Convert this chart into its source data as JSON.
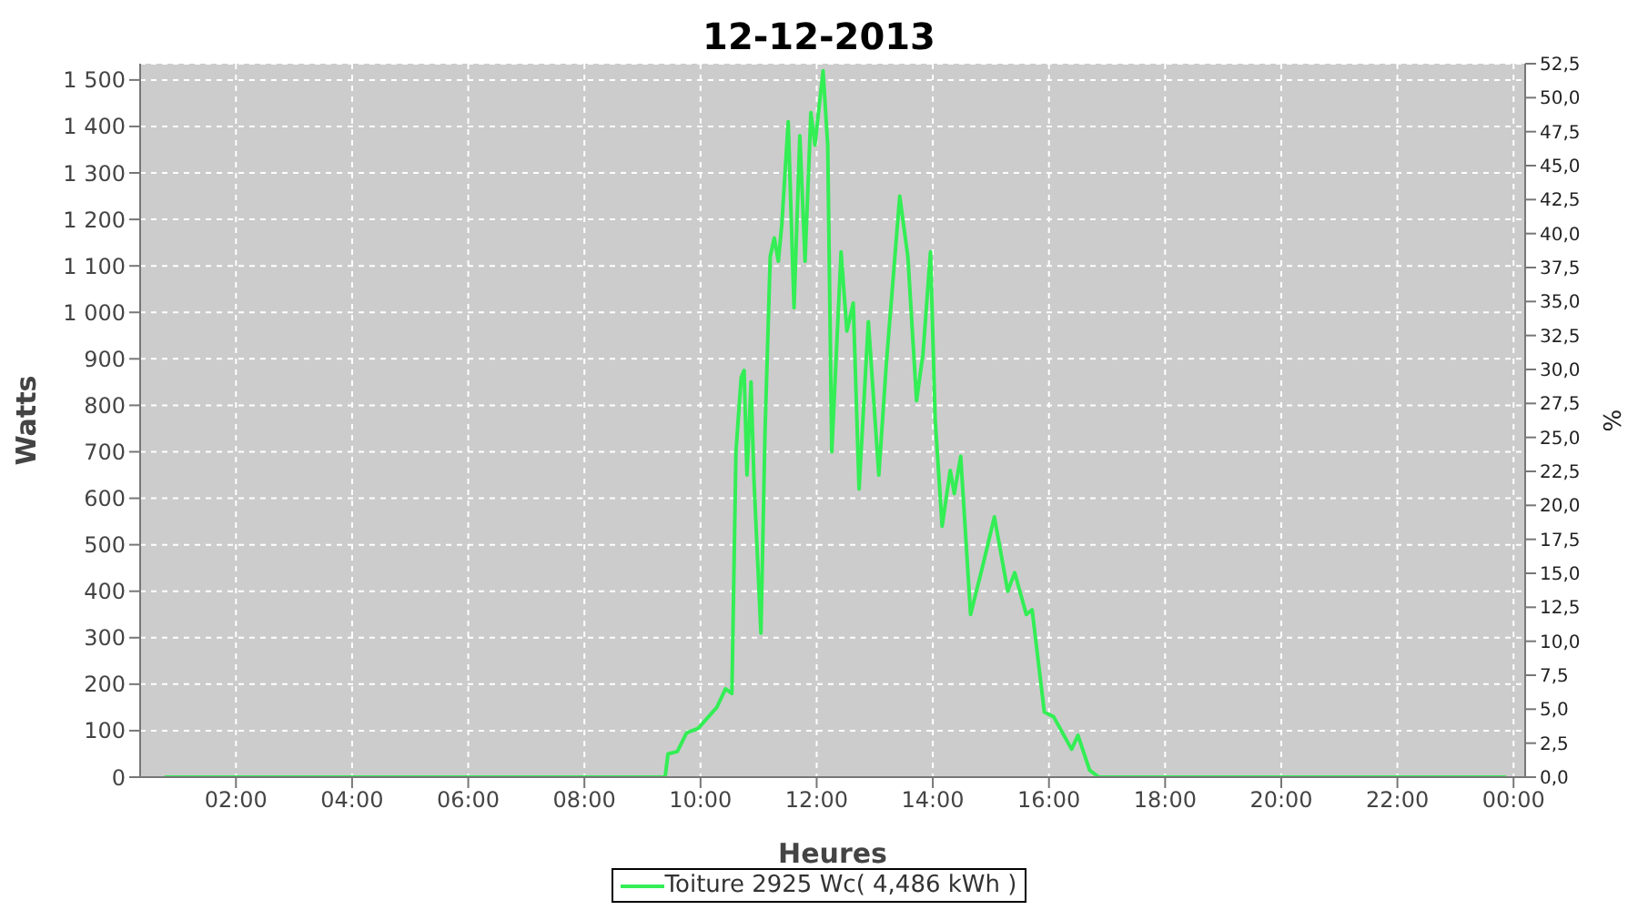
{
  "chart_data": {
    "type": "line",
    "title": "12-12-2013",
    "xlabel": "Heures",
    "ylabel": "Watts",
    "y2label": "%",
    "x": [
      0.77,
      9.39,
      9.44,
      9.6,
      9.76,
      9.96,
      10.28,
      10.43,
      10.54,
      10.61,
      10.7,
      10.75,
      10.8,
      10.87,
      10.92,
      11.04,
      11.11,
      11.2,
      11.27,
      11.34,
      11.4,
      11.51,
      11.61,
      11.71,
      11.8,
      11.9,
      11.97,
      12.11,
      12.19,
      12.26,
      12.42,
      12.52,
      12.63,
      12.73,
      12.89,
      13.07,
      13.2,
      13.43,
      13.57,
      13.72,
      13.83,
      13.96,
      14.04,
      14.16,
      14.3,
      14.37,
      14.48,
      14.65,
      14.87,
      15.06,
      15.29,
      15.41,
      15.61,
      15.71,
      15.92,
      16.08,
      16.39,
      16.5,
      16.7,
      16.86,
      23.87
    ],
    "series": [
      {
        "name": "Toiture 2925 Wc( 4,486 kWh )",
        "color": "#33ee55",
        "values": [
          0,
          0,
          50,
          55,
          95,
          105,
          150,
          190,
          180,
          700,
          860,
          875,
          650,
          850,
          640,
          310,
          740,
          1120,
          1160,
          1110,
          1190,
          1410,
          1010,
          1380,
          1110,
          1430,
          1360,
          1520,
          1360,
          700,
          1130,
          960,
          1020,
          620,
          980,
          650,
          890,
          1250,
          1120,
          810,
          910,
          1130,
          770,
          540,
          660,
          610,
          690,
          350,
          460,
          560,
          400,
          440,
          350,
          360,
          140,
          130,
          60,
          90,
          15,
          0,
          0
        ]
      }
    ],
    "xlim": [
      0.35,
      24.2
    ],
    "xticks": [
      {
        "value": 2,
        "label": "02:00"
      },
      {
        "value": 4,
        "label": "04:00"
      },
      {
        "value": 6,
        "label": "06:00"
      },
      {
        "value": 8,
        "label": "08:00"
      },
      {
        "value": 10,
        "label": "10:00"
      },
      {
        "value": 12,
        "label": "12:00"
      },
      {
        "value": 14,
        "label": "14:00"
      },
      {
        "value": 16,
        "label": "16:00"
      },
      {
        "value": 18,
        "label": "18:00"
      },
      {
        "value": 20,
        "label": "20:00"
      },
      {
        "value": 22,
        "label": "22:00"
      },
      {
        "value": 24,
        "label": "00:00"
      }
    ],
    "ylim": [
      0,
      1535
    ],
    "yticks": [
      0,
      100,
      200,
      300,
      400,
      500,
      600,
      700,
      800,
      900,
      {
        "value": 1000,
        "label": "1 000"
      },
      {
        "value": 1100,
        "label": "1 100"
      },
      {
        "value": 1200,
        "label": "1 200"
      },
      {
        "value": 1300,
        "label": "1 300"
      },
      {
        "value": 1400,
        "label": "1 400"
      },
      {
        "value": 1500,
        "label": "1 500"
      }
    ],
    "y2lim": [
      0,
      52.5
    ],
    "y2ticks": [
      {
        "value": 0,
        "label": "0,0"
      },
      {
        "value": 2.5,
        "label": "2,5"
      },
      {
        "value": 5,
        "label": "5,0"
      },
      {
        "value": 7.5,
        "label": "7,5"
      },
      {
        "value": 10,
        "label": "10,0"
      },
      {
        "value": 12.5,
        "label": "12,5"
      },
      {
        "value": 15,
        "label": "15,0"
      },
      {
        "value": 17.5,
        "label": "17,5"
      },
      {
        "value": 20,
        "label": "20,0"
      },
      {
        "value": 22.5,
        "label": "22,5"
      },
      {
        "value": 25,
        "label": "25,0"
      },
      {
        "value": 27.5,
        "label": "27,5"
      },
      {
        "value": 30,
        "label": "30,0"
      },
      {
        "value": 32.5,
        "label": "32,5"
      },
      {
        "value": 35,
        "label": "35,0"
      },
      {
        "value": 37.5,
        "label": "37,5"
      },
      {
        "value": 40,
        "label": "40,0"
      },
      {
        "value": 42.5,
        "label": "42,5"
      },
      {
        "value": 45,
        "label": "45,0"
      },
      {
        "value": 47.5,
        "label": "47,5"
      },
      {
        "value": 50,
        "label": "50,0"
      },
      {
        "value": 52.5,
        "label": "52,5"
      }
    ],
    "grid": true,
    "legend": "bottom",
    "marker": "none",
    "line_style": "solid"
  }
}
